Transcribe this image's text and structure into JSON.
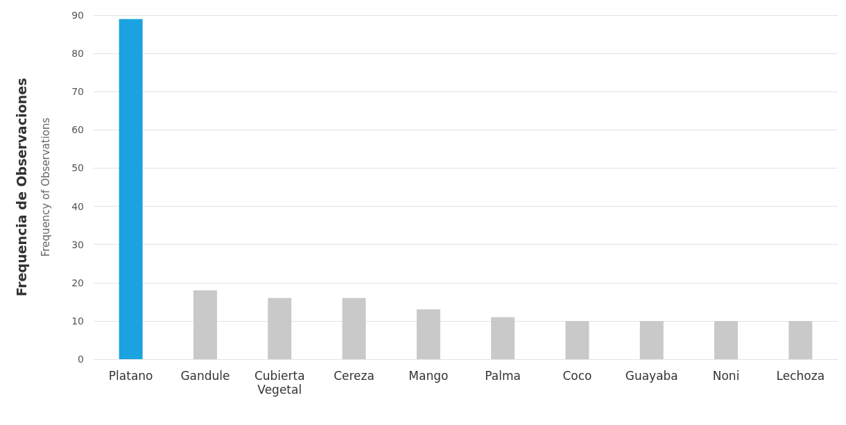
{
  "chart_data": {
    "type": "bar",
    "ylabel": "Frequencia de Observaciones",
    "annotations": [
      "Frequency of Observations"
    ],
    "categories": [
      "Platano",
      "Gandule",
      "Cubierta\nVegetal",
      "Cereza",
      "Mango",
      "Palma",
      "Coco",
      "Guayaba",
      "Noni",
      "Lechoza"
    ],
    "values": [
      89,
      18,
      16,
      16,
      13,
      11,
      10,
      10,
      10,
      10
    ],
    "colors": [
      "#1aa3e0",
      "#c9c9c9",
      "#c9c9c9",
      "#c9c9c9",
      "#c9c9c9",
      "#c9c9c9",
      "#c9c9c9",
      "#c9c9c9",
      "#c9c9c9",
      "#c9c9c9"
    ],
    "ylim": [
      0,
      90
    ],
    "yticks": [
      0,
      10,
      20,
      30,
      40,
      50,
      60,
      70,
      80,
      90
    ],
    "grid": "y"
  }
}
